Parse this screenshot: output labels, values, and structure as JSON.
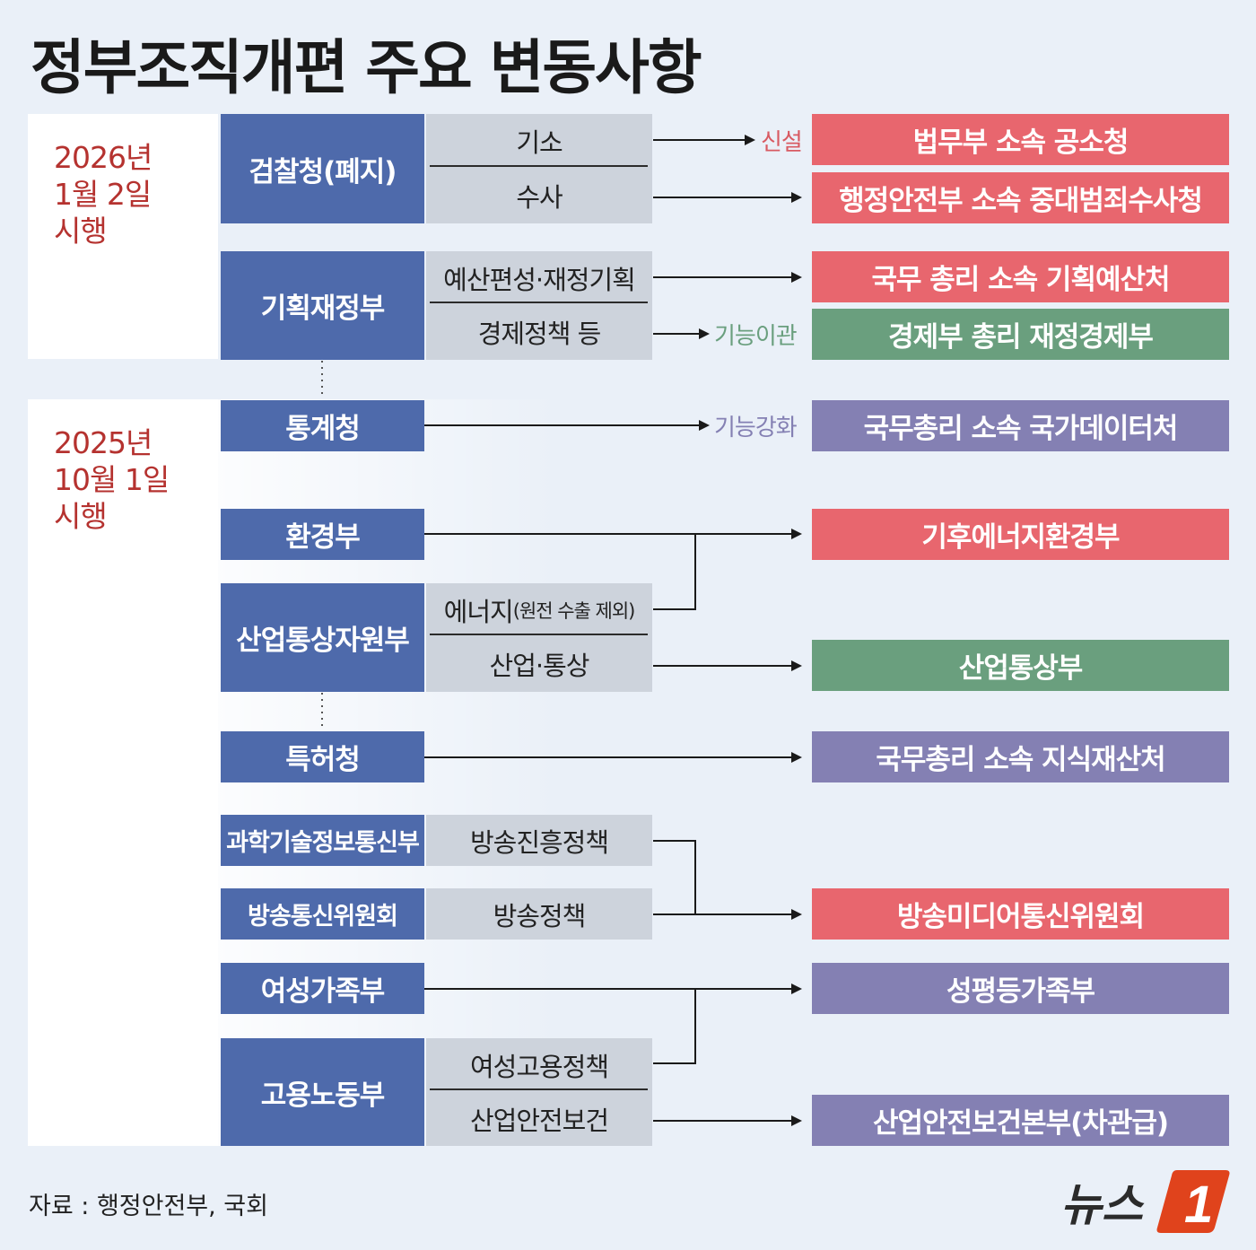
{
  "title": "정부조직개편 주요 변동사항",
  "sections": {
    "first": {
      "date": "2026년\n1월 2일\n시행"
    },
    "second": {
      "date": "2025년\n10월 1일\n시행"
    }
  },
  "orgs": {
    "prosecution": "검찰청(폐지)",
    "finance": "기획재정부",
    "statistics": "통계청",
    "environment": "환경부",
    "industry": "산업통상자원부",
    "patent": "특허청",
    "science": "과학기술정보통신부",
    "broadcast": "방송통신위원회",
    "gender": "여성가족부",
    "labor": "고용노동부"
  },
  "functions": {
    "prosecution_charge": "기소",
    "prosecution_investigation": "수사",
    "finance_budget": "예산편성·재정기획",
    "finance_policy": "경제정책 등",
    "industry_energy": "에너지",
    "industry_energy_note": "(원전 수출 제외)",
    "industry_trade": "산업·통상",
    "science_broadcast": "방송진흥정책",
    "broadcast_policy": "방송정책",
    "labor_women": "여성고용정책",
    "labor_safety": "산업안전보건"
  },
  "tags": {
    "new": "신설",
    "transfer": "기능이관",
    "strengthen": "기능강화"
  },
  "results": {
    "prosecution_service": "법무부 소속 공소청",
    "serious_crime": "행정안전부 소속 중대범죄수사청",
    "budget_office": "국무 총리 소속 기획예산처",
    "finance_economy": "경제부 총리 재정경제부",
    "data_office": "국무총리 소속 국가데이터처",
    "climate_energy": "기후에너지환경부",
    "trade_industry": "산업통상부",
    "ip_office": "국무총리 소속 지식재산처",
    "media_comm": "방송미디어통신위원회",
    "gender_equality": "성평등가족부",
    "safety_hq": "산업안전보건본부(차관급)"
  },
  "footer": {
    "source": "자료 : 행정안전부, 국회",
    "logo_text": "뉴스",
    "logo_number": "1"
  },
  "colors": {
    "org": "#4e6aab",
    "function": "#cdd3dc",
    "new_org": "#e8666e",
    "transferred": "#6a9f7e",
    "upgraded": "#8480b3",
    "date_text": "#b5322f"
  }
}
